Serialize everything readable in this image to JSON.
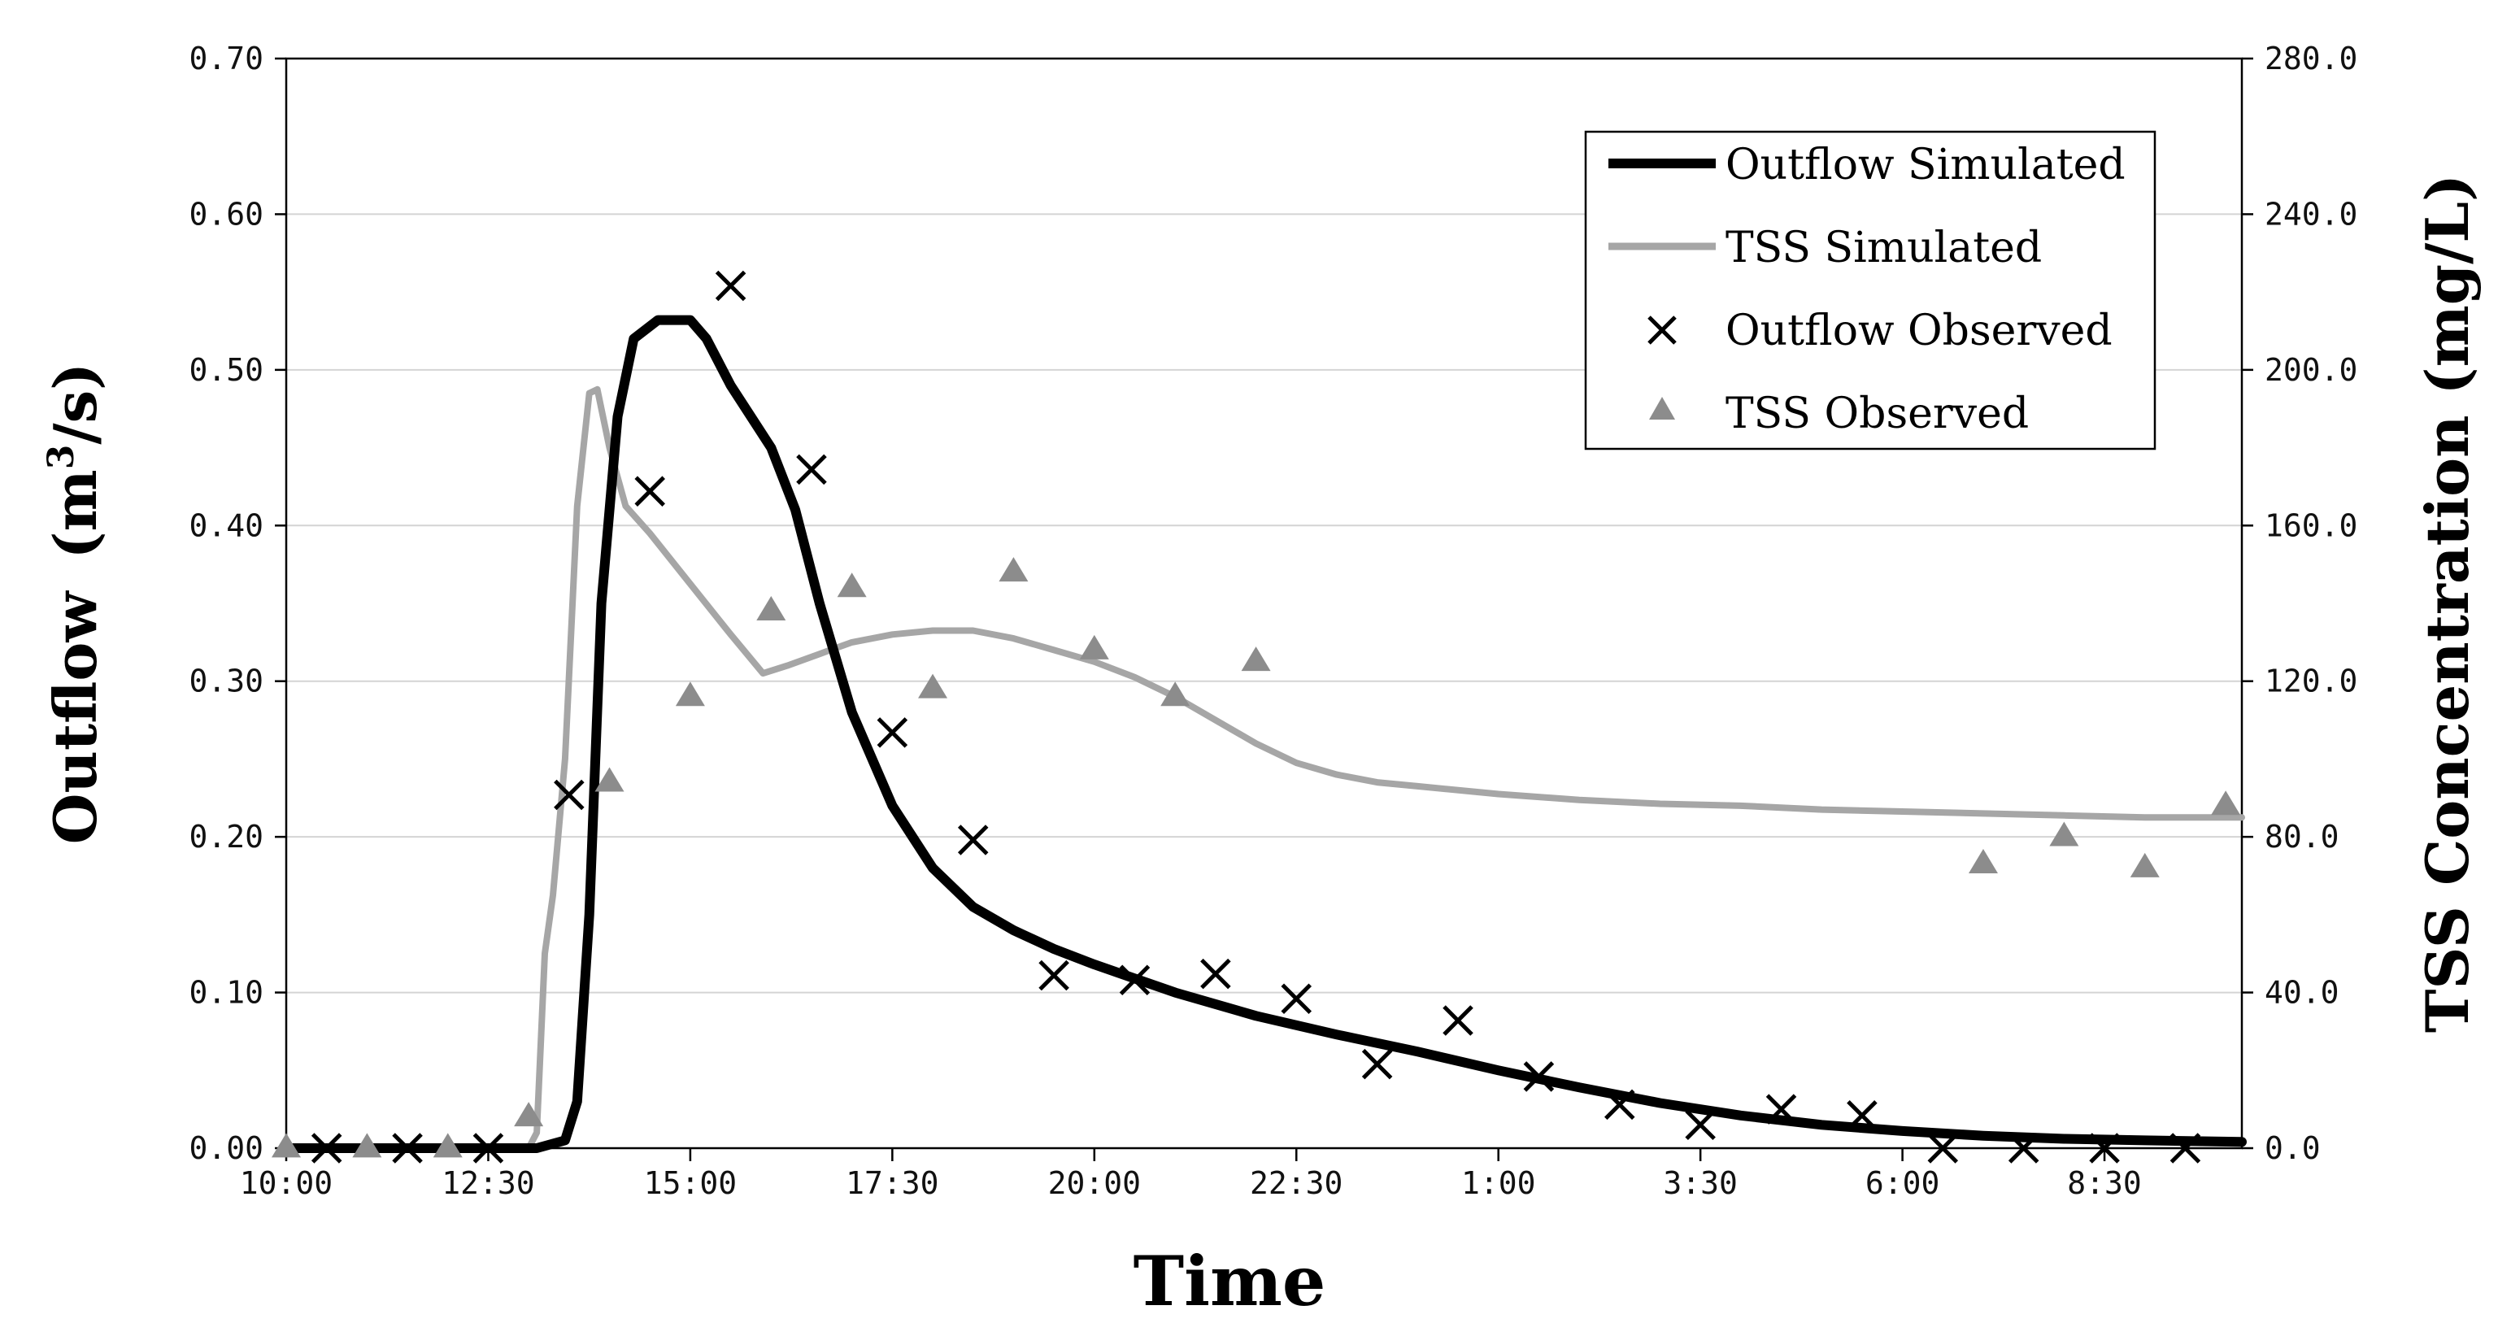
{
  "chart_data": {
    "type": "line",
    "x_unit": "hours since 10:00",
    "xlabel": "Time",
    "ylabel_left_main": "Outflow",
    "ylabel_left_unit_open": "(m",
    "ylabel_left_unit_sup": "3",
    "ylabel_left_unit_close": "/s)",
    "ylabel_right": "TSS Concentration (mg/L)",
    "xlim": [
      0,
      24.2
    ],
    "ylim_left": [
      0,
      0.7
    ],
    "ylim_right": [
      0,
      280
    ],
    "grid": true,
    "legend_position": "top-right",
    "x_ticks": [
      {
        "value": 0,
        "label": "10:00"
      },
      {
        "value": 2.5,
        "label": "12:30"
      },
      {
        "value": 5,
        "label": "15:00"
      },
      {
        "value": 7.5,
        "label": "17:30"
      },
      {
        "value": 10,
        "label": "20:00"
      },
      {
        "value": 12.5,
        "label": "22:30"
      },
      {
        "value": 15,
        "label": "1:00"
      },
      {
        "value": 17.5,
        "label": "3:30"
      },
      {
        "value": 20,
        "label": "6:00"
      },
      {
        "value": 22.5,
        "label": "8:30"
      }
    ],
    "y_ticks_left": [
      {
        "value": 0,
        "label": "0.00"
      },
      {
        "value": 0.1,
        "label": "0.10"
      },
      {
        "value": 0.2,
        "label": "0.20"
      },
      {
        "value": 0.3,
        "label": "0.30"
      },
      {
        "value": 0.4,
        "label": "0.40"
      },
      {
        "value": 0.5,
        "label": "0.50"
      },
      {
        "value": 0.6,
        "label": "0.60"
      },
      {
        "value": 0.7,
        "label": "0.70"
      }
    ],
    "y_ticks_right": [
      {
        "value": 0,
        "label": "0.0"
      },
      {
        "value": 40,
        "label": "40.0"
      },
      {
        "value": 80,
        "label": "80.0"
      },
      {
        "value": 120,
        "label": "120.0"
      },
      {
        "value": 160,
        "label": "160.0"
      },
      {
        "value": 200,
        "label": "200.0"
      },
      {
        "value": 240,
        "label": "240.0"
      },
      {
        "value": 280,
        "label": "280.0"
      }
    ],
    "series": [
      {
        "name": "Outflow Simulated",
        "axis": "left",
        "kind": "line",
        "color": "#000000",
        "points": [
          [
            0,
            0
          ],
          [
            3.1,
            0
          ],
          [
            3.45,
            0.005
          ],
          [
            3.6,
            0.03
          ],
          [
            3.75,
            0.15
          ],
          [
            3.9,
            0.35
          ],
          [
            4.1,
            0.47
          ],
          [
            4.3,
            0.52
          ],
          [
            4.6,
            0.532
          ],
          [
            5.0,
            0.532
          ],
          [
            5.2,
            0.52
          ],
          [
            5.5,
            0.49
          ],
          [
            6.0,
            0.45
          ],
          [
            6.3,
            0.41
          ],
          [
            6.6,
            0.35
          ],
          [
            7.0,
            0.28
          ],
          [
            7.5,
            0.22
          ],
          [
            8.0,
            0.18
          ],
          [
            8.5,
            0.155
          ],
          [
            9.0,
            0.14
          ],
          [
            9.5,
            0.128
          ],
          [
            10.0,
            0.118
          ],
          [
            11.0,
            0.1
          ],
          [
            12.0,
            0.085
          ],
          [
            13.0,
            0.073
          ],
          [
            14.0,
            0.062
          ],
          [
            15.0,
            0.05
          ],
          [
            16.0,
            0.039
          ],
          [
            17.0,
            0.029
          ],
          [
            18.0,
            0.021
          ],
          [
            19.0,
            0.015
          ],
          [
            20.0,
            0.011
          ],
          [
            21.0,
            0.008
          ],
          [
            22.0,
            0.006
          ],
          [
            23.0,
            0.005
          ],
          [
            24.2,
            0.004
          ]
        ]
      },
      {
        "name": "TSS Simulated",
        "axis": "right",
        "kind": "line",
        "color": "#a6a6a6",
        "points": [
          [
            0,
            0
          ],
          [
            3.0,
            0
          ],
          [
            3.1,
            4
          ],
          [
            3.2,
            50
          ],
          [
            3.3,
            65
          ],
          [
            3.45,
            100
          ],
          [
            3.6,
            165
          ],
          [
            3.75,
            194
          ],
          [
            3.85,
            195
          ],
          [
            4.0,
            180
          ],
          [
            4.2,
            165
          ],
          [
            4.5,
            158
          ],
          [
            5.0,
            145
          ],
          [
            5.5,
            132
          ],
          [
            5.9,
            122
          ],
          [
            6.2,
            124
          ],
          [
            6.6,
            127
          ],
          [
            7.0,
            130
          ],
          [
            7.5,
            132
          ],
          [
            8.0,
            133
          ],
          [
            8.5,
            133
          ],
          [
            9.0,
            131
          ],
          [
            9.5,
            128
          ],
          [
            10.0,
            125
          ],
          [
            10.5,
            121
          ],
          [
            11.0,
            116
          ],
          [
            11.5,
            110
          ],
          [
            12.0,
            104
          ],
          [
            12.5,
            99
          ],
          [
            13.0,
            96
          ],
          [
            13.5,
            94
          ],
          [
            14.0,
            93
          ],
          [
            15.0,
            91
          ],
          [
            16.0,
            89.5
          ],
          [
            17.0,
            88.5
          ],
          [
            18.0,
            88
          ],
          [
            19.0,
            87
          ],
          [
            20.0,
            86.5
          ],
          [
            21.0,
            86
          ],
          [
            22.0,
            85.5
          ],
          [
            23.0,
            85
          ],
          [
            24.2,
            85
          ]
        ]
      },
      {
        "name": "Outflow Observed",
        "axis": "left",
        "kind": "x-marker",
        "color": "#000000",
        "points": [
          [
            0.5,
            0
          ],
          [
            1.5,
            0
          ],
          [
            2.5,
            0
          ],
          [
            3.5,
            0.227
          ],
          [
            4.5,
            0.422
          ],
          [
            5.5,
            0.554
          ],
          [
            6.5,
            0.436
          ],
          [
            7.5,
            0.267
          ],
          [
            8.5,
            0.198
          ],
          [
            9.5,
            0.111
          ],
          [
            10.5,
            0.108
          ],
          [
            11.5,
            0.112
          ],
          [
            12.5,
            0.096
          ],
          [
            13.5,
            0.054
          ],
          [
            14.5,
            0.082
          ],
          [
            15.5,
            0.046
          ],
          [
            16.5,
            0.028
          ],
          [
            17.5,
            0.015
          ],
          [
            18.5,
            0.025
          ],
          [
            19.5,
            0.021
          ],
          [
            20.5,
            0
          ],
          [
            21.5,
            0
          ],
          [
            22.5,
            0
          ],
          [
            23.5,
            0
          ]
        ]
      },
      {
        "name": "TSS Observed",
        "axis": "right",
        "kind": "triangle-marker",
        "color": "#8c8c8c",
        "points": [
          [
            0,
            0
          ],
          [
            1.0,
            0
          ],
          [
            2.0,
            0
          ],
          [
            3.0,
            8
          ],
          [
            4.0,
            94
          ],
          [
            5.0,
            116
          ],
          [
            6.0,
            138
          ],
          [
            7.0,
            144
          ],
          [
            8.0,
            118
          ],
          [
            9.0,
            148
          ],
          [
            10.0,
            128
          ],
          [
            11.0,
            116
          ],
          [
            12.0,
            125
          ],
          [
            21.0,
            73
          ],
          [
            22.0,
            80
          ],
          [
            23.0,
            72
          ],
          [
            24.0,
            88
          ]
        ]
      }
    ]
  }
}
